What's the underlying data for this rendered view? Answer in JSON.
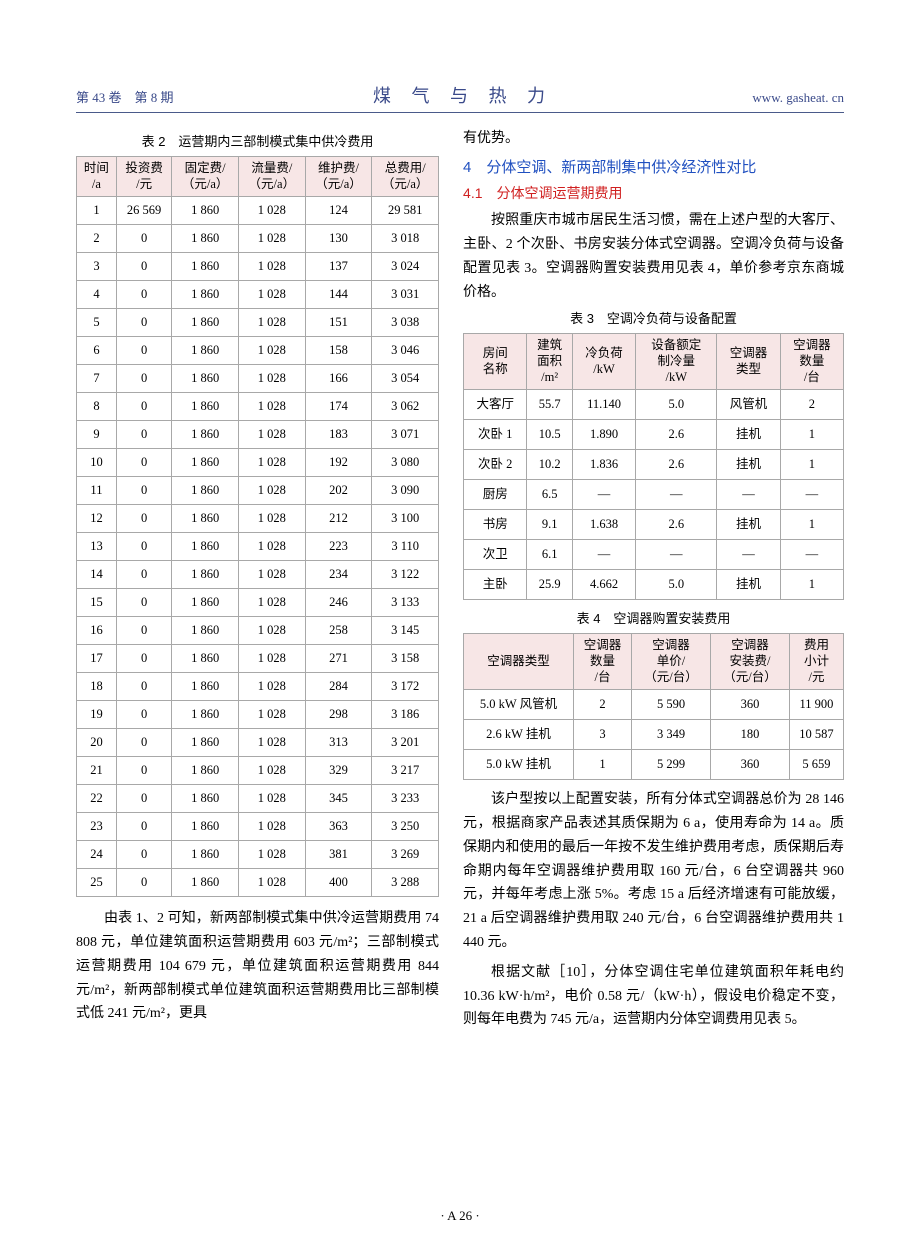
{
  "header": {
    "left": "第 43 卷　第 8 期",
    "center": "煤 气 与 热 力",
    "right": "www. gasheat. cn"
  },
  "footer": "· A 26 ·",
  "table2": {
    "caption": "表 2　运营期内三部制模式集中供冷费用",
    "headers": [
      "时间\n/a",
      "投资费\n/元",
      "固定费/\n（元/a）",
      "流量费/\n（元/a）",
      "维护费/\n（元/a）",
      "总费用/\n（元/a）"
    ],
    "header_bg": "#f7e6e6",
    "rows": [
      [
        "1",
        "26 569",
        "1 860",
        "1 028",
        "124",
        "29 581"
      ],
      [
        "2",
        "0",
        "1 860",
        "1 028",
        "130",
        "3 018"
      ],
      [
        "3",
        "0",
        "1 860",
        "1 028",
        "137",
        "3 024"
      ],
      [
        "4",
        "0",
        "1 860",
        "1 028",
        "144",
        "3 031"
      ],
      [
        "5",
        "0",
        "1 860",
        "1 028",
        "151",
        "3 038"
      ],
      [
        "6",
        "0",
        "1 860",
        "1 028",
        "158",
        "3 046"
      ],
      [
        "7",
        "0",
        "1 860",
        "1 028",
        "166",
        "3 054"
      ],
      [
        "8",
        "0",
        "1 860",
        "1 028",
        "174",
        "3 062"
      ],
      [
        "9",
        "0",
        "1 860",
        "1 028",
        "183",
        "3 071"
      ],
      [
        "10",
        "0",
        "1 860",
        "1 028",
        "192",
        "3 080"
      ],
      [
        "11",
        "0",
        "1 860",
        "1 028",
        "202",
        "3 090"
      ],
      [
        "12",
        "0",
        "1 860",
        "1 028",
        "212",
        "3 100"
      ],
      [
        "13",
        "0",
        "1 860",
        "1 028",
        "223",
        "3 110"
      ],
      [
        "14",
        "0",
        "1 860",
        "1 028",
        "234",
        "3 122"
      ],
      [
        "15",
        "0",
        "1 860",
        "1 028",
        "246",
        "3 133"
      ],
      [
        "16",
        "0",
        "1 860",
        "1 028",
        "258",
        "3 145"
      ],
      [
        "17",
        "0",
        "1 860",
        "1 028",
        "271",
        "3 158"
      ],
      [
        "18",
        "0",
        "1 860",
        "1 028",
        "284",
        "3 172"
      ],
      [
        "19",
        "0",
        "1 860",
        "1 028",
        "298",
        "3 186"
      ],
      [
        "20",
        "0",
        "1 860",
        "1 028",
        "313",
        "3 201"
      ],
      [
        "21",
        "0",
        "1 860",
        "1 028",
        "329",
        "3 217"
      ],
      [
        "22",
        "0",
        "1 860",
        "1 028",
        "345",
        "3 233"
      ],
      [
        "23",
        "0",
        "1 860",
        "1 028",
        "363",
        "3 250"
      ],
      [
        "24",
        "0",
        "1 860",
        "1 028",
        "381",
        "3 269"
      ],
      [
        "25",
        "0",
        "1 860",
        "1 028",
        "400",
        "3 288"
      ]
    ]
  },
  "left_para": "由表 1、2 可知，新两部制模式集中供冷运营期费用 74 808 元，单位建筑面积运营期费用 603 元/m²；三部制模式运营期费用 104 679 元，单位建筑面积运营期费用 844 元/m²，新两部制模式单位建筑面积运营期费用比三部制模式低 241 元/m²，更具",
  "right": {
    "continuation": "有优势。",
    "section_num": "4",
    "section_title": "分体空调、新两部制集中供冷经济性对比",
    "subsection": "4.1　分体空调运营期费用",
    "para1": "按照重庆市城市居民生活习惯，需在上述户型的大客厅、主卧、2 个次卧、书房安装分体式空调器。空调冷负荷与设备配置见表 3。空调器购置安装费用见表 4，单价参考京东商城价格。"
  },
  "table3": {
    "caption": "表 3　空调冷负荷与设备配置",
    "headers": [
      "房间\n名称",
      "建筑\n面积\n/m²",
      "冷负荷\n/kW",
      "设备额定\n制冷量\n/kW",
      "空调器\n类型",
      "空调器\n数量\n/台"
    ],
    "header_bg": "#f7e6e6",
    "rows": [
      [
        "大客厅",
        "55.7",
        "11.140",
        "5.0",
        "风管机",
        "2"
      ],
      [
        "次卧 1",
        "10.5",
        "1.890",
        "2.6",
        "挂机",
        "1"
      ],
      [
        "次卧 2",
        "10.2",
        "1.836",
        "2.6",
        "挂机",
        "1"
      ],
      [
        "厨房",
        "6.5",
        "—",
        "—",
        "—",
        "—"
      ],
      [
        "书房",
        "9.1",
        "1.638",
        "2.6",
        "挂机",
        "1"
      ],
      [
        "次卫",
        "6.1",
        "—",
        "—",
        "—",
        "—"
      ],
      [
        "主卧",
        "25.9",
        "4.662",
        "5.0",
        "挂机",
        "1"
      ]
    ]
  },
  "table4": {
    "caption": "表 4　空调器购置安装费用",
    "headers": [
      "空调器类型",
      "空调器\n数量\n/台",
      "空调器\n单价/\n（元/台）",
      "空调器\n安装费/\n（元/台）",
      "费用\n小计\n/元"
    ],
    "header_bg": "#f7e6e6",
    "rows": [
      [
        "5.0 kW 风管机",
        "2",
        "5 590",
        "360",
        "11 900"
      ],
      [
        "2.6 kW 挂机",
        "3",
        "3 349",
        "180",
        "10 587"
      ],
      [
        "5.0 kW 挂机",
        "1",
        "5 299",
        "360",
        "5 659"
      ]
    ]
  },
  "right_para2": "该户型按以上配置安装，所有分体式空调器总价为 28 146 元，根据商家产品表述其质保期为 6 a，使用寿命为 14 a。质保期内和使用的最后一年按不发生维护费用考虑，质保期后寿命期内每年空调器维护费用取 160 元/台，6 台空调器共 960 元，并每年考虑上涨 5%。考虑 15 a 后经济增速有可能放缓，21 a 后空调器维护费用取 240 元/台，6 台空调器维护费用共 1 440 元。",
  "right_para3": "根据文献［10］，分体空调住宅单位建筑面积年耗电约 10.36 kW·h/m²，电价 0.58 元/（kW·h），假设电价稳定不变，则每年电费为 745 元/a，运营期内分体空调费用见表 5。",
  "colors": {
    "header_color": "#3a4a8a",
    "section_color": "#2050c0",
    "subsection_color": "#d02020",
    "th_bg": "#f7e6e6",
    "border": "#a8a8a8"
  }
}
